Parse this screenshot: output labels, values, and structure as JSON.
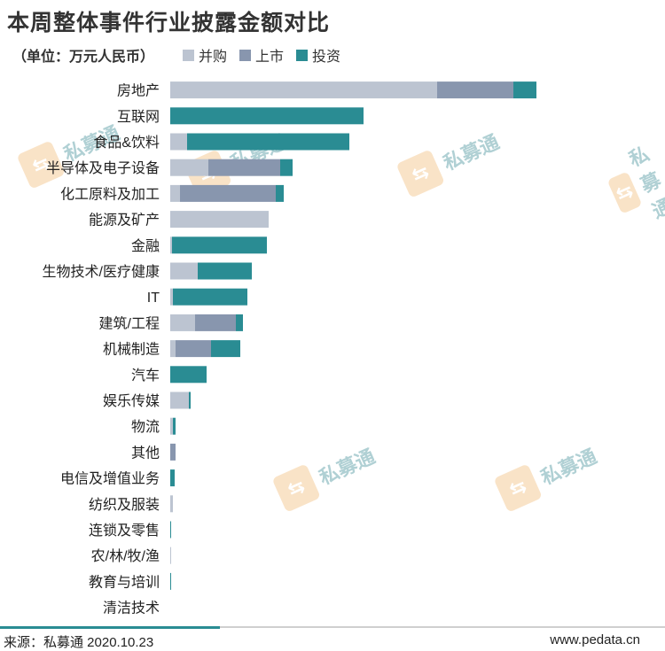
{
  "title": "本周整体事件行业披露金额对比",
  "unit_label": "（单位：万元人民币）",
  "legend": [
    {
      "label": "并购",
      "color": "#bcc4d1"
    },
    {
      "label": "上市",
      "color": "#8896ae"
    },
    {
      "label": "投资",
      "color": "#2a8c93"
    }
  ],
  "chart_data": {
    "type": "bar",
    "orientation": "horizontal",
    "stacked": true,
    "categories": [
      "房地产",
      "互联网",
      "食品&饮料",
      "半导体及电子设备",
      "化工原料及加工",
      "能源及矿产",
      "金融",
      "生物技术/医疗健康",
      "IT",
      "建筑/工程",
      "机械制造",
      "汽车",
      "娱乐传媒",
      "物流",
      "其他",
      "电信及增值业务",
      "纺织及服装",
      "连锁及零售",
      "农/林/牧/渔",
      "教育与培训",
      "清洁技术"
    ],
    "series": [
      {
        "name": "并购",
        "values": [
          301,
          0,
          19,
          43,
          11,
          111,
          2,
          31,
          3,
          28,
          6,
          0,
          21,
          3,
          0,
          0,
          3,
          0,
          1,
          0,
          0
        ]
      },
      {
        "name": "上市",
        "values": [
          86,
          0,
          0,
          81,
          108,
          0,
          0,
          0,
          0,
          46,
          40,
          0,
          0,
          0,
          6,
          0,
          0,
          0,
          0,
          0,
          0
        ]
      },
      {
        "name": "投资",
        "values": [
          26,
          218,
          183,
          14,
          9,
          0,
          107,
          61,
          84,
          8,
          33,
          41,
          2,
          3,
          0,
          5,
          0,
          1,
          0,
          1,
          0
        ]
      }
    ],
    "grid": false,
    "legend_position": "top"
  },
  "watermark": {
    "logo": "⇆",
    "text": "私募通"
  },
  "footer": {
    "source": "来源：私募通 2020.10.23",
    "site": "www.pedata.cn"
  }
}
